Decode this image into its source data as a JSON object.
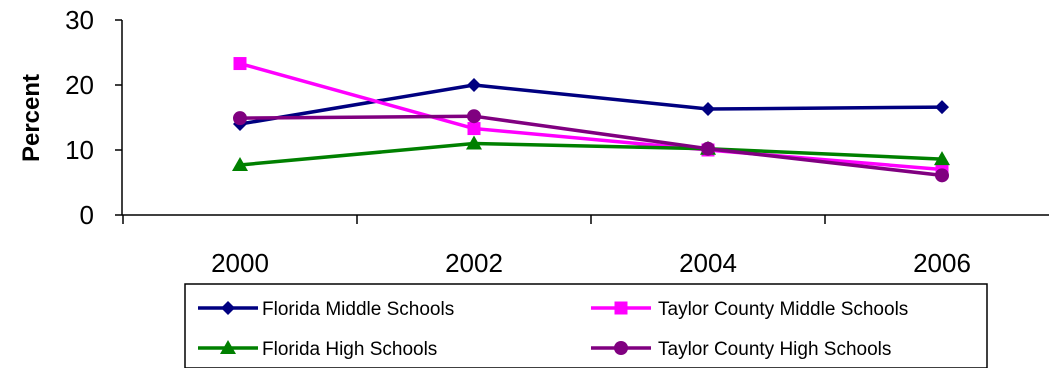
{
  "chart_data": {
    "type": "line",
    "title": "",
    "xlabel": "",
    "ylabel": "Percent",
    "categories": [
      "2000",
      "2002",
      "2004",
      "2006"
    ],
    "ylim": [
      0,
      30
    ],
    "yticks": [
      "0",
      "10",
      "20",
      "30"
    ],
    "grid": false,
    "legend_position": "bottom",
    "series": [
      {
        "name": "Florida Middle Schools",
        "values": [
          14.0,
          20.0,
          16.3,
          16.6
        ],
        "color": "#000080",
        "marker": "diamond"
      },
      {
        "name": "Taylor County Middle Schools",
        "values": [
          23.3,
          13.3,
          10.0,
          7.0
        ],
        "color": "#ff00ff",
        "marker": "square"
      },
      {
        "name": "Florida High Schools",
        "values": [
          7.7,
          11.0,
          10.2,
          8.6
        ],
        "color": "#008000",
        "marker": "triangle"
      },
      {
        "name": "Taylor County High Schools",
        "values": [
          14.9,
          15.2,
          10.2,
          6.1
        ],
        "color": "#800080",
        "marker": "circle"
      }
    ]
  }
}
